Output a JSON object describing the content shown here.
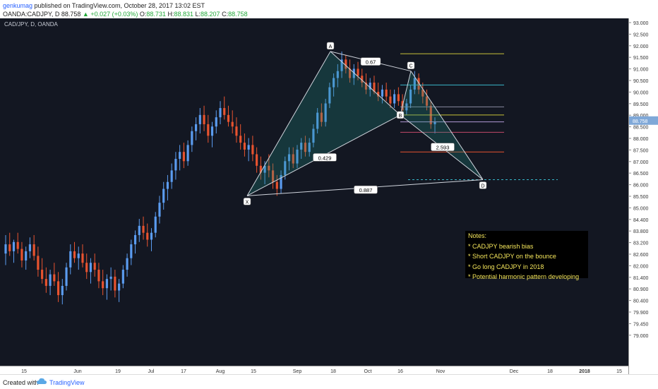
{
  "header": {
    "user": "genkumag",
    "published": "published on TradingView.com, October 28, 2017 13:02 EST",
    "symbol": "OANDA:CADJPY, D",
    "last": "88.758",
    "change": "▲ +0.027 (+0.03%)",
    "open_label": "O:",
    "open": "88.731",
    "high_label": "H:",
    "high": "88.831",
    "low_label": "L:",
    "low": "88.207",
    "close_label": "C:",
    "close": "88.758"
  },
  "footer": {
    "created_with": "Created with",
    "brand": "TradingView"
  },
  "notes": {
    "title": "Notes:",
    "lines": [
      "* CADJPY bearish bias",
      "* Short CADJPY on the bounce",
      "* Go long CADJPY in 2018",
      "* Potential harmonic pattern developing"
    ]
  },
  "chart_data": {
    "type": "candlestick",
    "title": "CAD/JPY, D, OANDA",
    "y_ticks": [
      "93.000",
      "92.500",
      "92.000",
      "91.500",
      "91.000",
      "90.500",
      "90.000",
      "89.500",
      "89.000",
      "88.500",
      "88.000",
      "87.500",
      "87.000",
      "86.500",
      "86.000",
      "85.500",
      "85.000",
      "84.400",
      "83.800",
      "83.200",
      "82.600",
      "82.000",
      "81.400",
      "80.900",
      "80.400",
      "79.900",
      "79.450",
      "79.000"
    ],
    "last_price_label": "88.758",
    "x_ticks": [
      "15",
      "Jun",
      "19",
      "Jul",
      "17",
      "Aug",
      "15",
      "Sep",
      "18",
      "Oct",
      "16",
      "Nov",
      "Dec",
      "18",
      "2018",
      "15"
    ],
    "pattern": {
      "points": [
        {
          "label": "X",
          "price": 85.5
        },
        {
          "label": "A",
          "price": 91.75
        },
        {
          "label": "B",
          "price": 89.0
        },
        {
          "label": "C",
          "price": 90.9
        },
        {
          "label": "D",
          "price": 86.2
        }
      ],
      "ratios": [
        "0.67",
        "0.429",
        "0.887",
        "2.593"
      ]
    },
    "candles": [
      {
        "o": 83.0,
        "h": 83.8,
        "l": 82.5,
        "c": 83.4
      },
      {
        "o": 83.4,
        "h": 83.9,
        "l": 82.9,
        "c": 83.1
      },
      {
        "o": 83.1,
        "h": 83.6,
        "l": 82.6,
        "c": 83.5
      },
      {
        "o": 83.5,
        "h": 83.9,
        "l": 83.0,
        "c": 83.2
      },
      {
        "o": 83.2,
        "h": 83.5,
        "l": 82.4,
        "c": 82.7
      },
      {
        "o": 82.7,
        "h": 83.3,
        "l": 82.3,
        "c": 83.1
      },
      {
        "o": 83.1,
        "h": 83.7,
        "l": 82.8,
        "c": 83.4
      },
      {
        "o": 83.4,
        "h": 83.8,
        "l": 82.7,
        "c": 82.9
      },
      {
        "o": 82.9,
        "h": 83.3,
        "l": 82.0,
        "c": 82.3
      },
      {
        "o": 82.3,
        "h": 82.8,
        "l": 81.7,
        "c": 81.9
      },
      {
        "o": 81.9,
        "h": 82.4,
        "l": 81.3,
        "c": 81.6
      },
      {
        "o": 81.6,
        "h": 82.3,
        "l": 81.2,
        "c": 82.1
      },
      {
        "o": 82.1,
        "h": 82.6,
        "l": 81.6,
        "c": 81.8
      },
      {
        "o": 81.8,
        "h": 82.2,
        "l": 80.9,
        "c": 81.2
      },
      {
        "o": 81.2,
        "h": 81.9,
        "l": 80.8,
        "c": 81.6
      },
      {
        "o": 81.6,
        "h": 82.6,
        "l": 81.4,
        "c": 82.4
      },
      {
        "o": 82.4,
        "h": 83.4,
        "l": 82.1,
        "c": 83.1
      },
      {
        "o": 83.1,
        "h": 83.5,
        "l": 82.6,
        "c": 82.8
      },
      {
        "o": 82.8,
        "h": 83.3,
        "l": 82.3,
        "c": 83.0
      },
      {
        "o": 83.0,
        "h": 83.4,
        "l": 82.4,
        "c": 82.6
      },
      {
        "o": 82.6,
        "h": 83.0,
        "l": 81.9,
        "c": 82.2
      },
      {
        "o": 82.2,
        "h": 82.8,
        "l": 81.7,
        "c": 82.6
      },
      {
        "o": 82.6,
        "h": 83.0,
        "l": 82.0,
        "c": 82.3
      },
      {
        "o": 82.3,
        "h": 82.6,
        "l": 81.5,
        "c": 81.8
      },
      {
        "o": 81.8,
        "h": 82.3,
        "l": 81.2,
        "c": 81.5
      },
      {
        "o": 81.5,
        "h": 82.1,
        "l": 81.0,
        "c": 81.9
      },
      {
        "o": 81.9,
        "h": 82.4,
        "l": 81.4,
        "c": 82.0
      },
      {
        "o": 82.0,
        "h": 82.3,
        "l": 81.1,
        "c": 81.4
      },
      {
        "o": 81.4,
        "h": 81.9,
        "l": 80.9,
        "c": 81.7
      },
      {
        "o": 81.7,
        "h": 82.5,
        "l": 81.5,
        "c": 82.3
      },
      {
        "o": 82.3,
        "h": 83.0,
        "l": 82.0,
        "c": 82.8
      },
      {
        "o": 82.8,
        "h": 83.6,
        "l": 82.5,
        "c": 83.4
      },
      {
        "o": 83.4,
        "h": 84.0,
        "l": 83.0,
        "c": 83.8
      },
      {
        "o": 83.8,
        "h": 84.5,
        "l": 83.5,
        "c": 84.2
      },
      {
        "o": 84.2,
        "h": 84.6,
        "l": 83.6,
        "c": 83.9
      },
      {
        "o": 83.9,
        "h": 84.3,
        "l": 83.3,
        "c": 83.6
      },
      {
        "o": 83.6,
        "h": 84.1,
        "l": 83.1,
        "c": 83.9
      },
      {
        "o": 83.9,
        "h": 84.8,
        "l": 83.7,
        "c": 84.6
      },
      {
        "o": 84.6,
        "h": 85.5,
        "l": 84.3,
        "c": 85.2
      },
      {
        "o": 85.2,
        "h": 86.1,
        "l": 84.9,
        "c": 85.8
      },
      {
        "o": 85.8,
        "h": 86.4,
        "l": 85.3,
        "c": 86.1
      },
      {
        "o": 86.1,
        "h": 86.9,
        "l": 85.8,
        "c": 86.6
      },
      {
        "o": 86.6,
        "h": 87.4,
        "l": 86.2,
        "c": 87.1
      },
      {
        "o": 87.1,
        "h": 87.7,
        "l": 86.6,
        "c": 87.4
      },
      {
        "o": 87.4,
        "h": 87.8,
        "l": 86.7,
        "c": 87.0
      },
      {
        "o": 87.0,
        "h": 87.9,
        "l": 86.8,
        "c": 87.7
      },
      {
        "o": 87.7,
        "h": 88.5,
        "l": 87.4,
        "c": 88.3
      },
      {
        "o": 88.3,
        "h": 88.9,
        "l": 87.9,
        "c": 88.6
      },
      {
        "o": 88.6,
        "h": 89.3,
        "l": 88.2,
        "c": 89.0
      },
      {
        "o": 89.0,
        "h": 89.4,
        "l": 88.3,
        "c": 88.6
      },
      {
        "o": 88.6,
        "h": 89.0,
        "l": 87.8,
        "c": 88.1
      },
      {
        "o": 88.1,
        "h": 88.7,
        "l": 87.6,
        "c": 88.5
      },
      {
        "o": 88.5,
        "h": 89.2,
        "l": 88.2,
        "c": 88.9
      },
      {
        "o": 88.9,
        "h": 89.6,
        "l": 88.6,
        "c": 89.3
      },
      {
        "o": 89.3,
        "h": 89.8,
        "l": 88.8,
        "c": 89.0
      },
      {
        "o": 89.0,
        "h": 89.4,
        "l": 88.5,
        "c": 88.7
      },
      {
        "o": 88.7,
        "h": 89.2,
        "l": 88.2,
        "c": 88.5
      },
      {
        "o": 88.5,
        "h": 88.9,
        "l": 87.8,
        "c": 88.1
      },
      {
        "o": 88.1,
        "h": 88.6,
        "l": 87.5,
        "c": 87.8
      },
      {
        "o": 87.8,
        "h": 88.2,
        "l": 87.2,
        "c": 87.5
      },
      {
        "o": 87.5,
        "h": 88.0,
        "l": 87.0,
        "c": 87.7
      },
      {
        "o": 87.7,
        "h": 88.1,
        "l": 87.0,
        "c": 87.3
      },
      {
        "o": 87.3,
        "h": 87.6,
        "l": 86.5,
        "c": 86.8
      },
      {
        "o": 86.8,
        "h": 87.2,
        "l": 86.2,
        "c": 86.5
      },
      {
        "o": 86.5,
        "h": 87.0,
        "l": 86.0,
        "c": 86.8
      },
      {
        "o": 86.8,
        "h": 87.3,
        "l": 86.3,
        "c": 86.6
      },
      {
        "o": 86.6,
        "h": 86.9,
        "l": 85.8,
        "c": 86.1
      },
      {
        "o": 86.1,
        "h": 86.4,
        "l": 85.5,
        "c": 85.8
      },
      {
        "o": 85.8,
        "h": 86.6,
        "l": 85.6,
        "c": 86.4
      },
      {
        "o": 86.4,
        "h": 87.2,
        "l": 86.2,
        "c": 87.0
      },
      {
        "o": 87.0,
        "h": 87.6,
        "l": 86.6,
        "c": 87.3
      },
      {
        "o": 87.3,
        "h": 87.6,
        "l": 86.7,
        "c": 86.9
      },
      {
        "o": 86.9,
        "h": 87.7,
        "l": 86.7,
        "c": 87.5
      },
      {
        "o": 87.5,
        "h": 88.0,
        "l": 87.1,
        "c": 87.8
      },
      {
        "o": 87.8,
        "h": 88.1,
        "l": 87.2,
        "c": 87.4
      },
      {
        "o": 87.4,
        "h": 88.0,
        "l": 87.2,
        "c": 87.8
      },
      {
        "o": 87.8,
        "h": 88.6,
        "l": 87.6,
        "c": 88.4
      },
      {
        "o": 88.4,
        "h": 89.3,
        "l": 88.2,
        "c": 89.1
      },
      {
        "o": 89.1,
        "h": 89.5,
        "l": 88.5,
        "c": 88.7
      },
      {
        "o": 88.7,
        "h": 89.7,
        "l": 88.5,
        "c": 89.5
      },
      {
        "o": 89.5,
        "h": 90.4,
        "l": 89.3,
        "c": 90.2
      },
      {
        "o": 90.2,
        "h": 90.8,
        "l": 89.8,
        "c": 90.6
      },
      {
        "o": 90.6,
        "h": 91.2,
        "l": 90.2,
        "c": 90.9
      },
      {
        "o": 90.9,
        "h": 91.75,
        "l": 90.6,
        "c": 91.4
      },
      {
        "o": 91.4,
        "h": 91.6,
        "l": 90.8,
        "c": 91.0
      },
      {
        "o": 91.0,
        "h": 91.4,
        "l": 90.4,
        "c": 90.6
      },
      {
        "o": 90.6,
        "h": 91.2,
        "l": 90.3,
        "c": 91.0
      },
      {
        "o": 91.0,
        "h": 91.3,
        "l": 90.5,
        "c": 90.7
      },
      {
        "o": 90.7,
        "h": 91.0,
        "l": 90.2,
        "c": 90.4
      },
      {
        "o": 90.4,
        "h": 90.8,
        "l": 89.9,
        "c": 90.1
      },
      {
        "o": 90.1,
        "h": 90.6,
        "l": 89.8,
        "c": 90.4
      },
      {
        "o": 90.4,
        "h": 90.7,
        "l": 89.9,
        "c": 90.0
      },
      {
        "o": 90.0,
        "h": 90.4,
        "l": 89.6,
        "c": 89.8
      },
      {
        "o": 89.8,
        "h": 90.3,
        "l": 89.5,
        "c": 90.1
      },
      {
        "o": 90.1,
        "h": 90.4,
        "l": 89.6,
        "c": 89.8
      },
      {
        "o": 89.8,
        "h": 90.1,
        "l": 89.3,
        "c": 89.5
      },
      {
        "o": 89.5,
        "h": 90.1,
        "l": 89.3,
        "c": 89.9
      },
      {
        "o": 89.9,
        "h": 90.2,
        "l": 89.4,
        "c": 89.6
      },
      {
        "o": 89.6,
        "h": 89.9,
        "l": 89.0,
        "c": 89.2
      },
      {
        "o": 89.2,
        "h": 89.7,
        "l": 89.0,
        "c": 89.5
      },
      {
        "o": 89.5,
        "h": 90.3,
        "l": 89.3,
        "c": 90.1
      },
      {
        "o": 90.1,
        "h": 90.9,
        "l": 89.9,
        "c": 90.6
      },
      {
        "o": 90.6,
        "h": 90.8,
        "l": 89.9,
        "c": 90.1
      },
      {
        "o": 90.1,
        "h": 90.4,
        "l": 89.5,
        "c": 89.8
      },
      {
        "o": 89.8,
        "h": 90.1,
        "l": 89.2,
        "c": 89.4
      },
      {
        "o": 89.4,
        "h": 89.6,
        "l": 88.4,
        "c": 88.6
      },
      {
        "o": 88.6,
        "h": 88.9,
        "l": 88.2,
        "c": 88.7
      }
    ]
  }
}
